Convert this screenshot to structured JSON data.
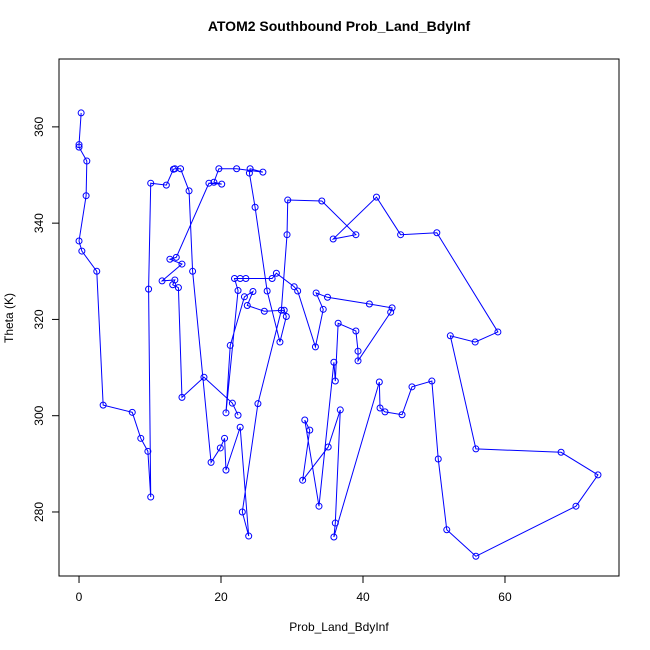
{
  "chart_data": {
    "type": "line",
    "title": "ATOM2 Southbound Prob_Land_BdyInf",
    "x_label": "Prob_Land_BdyInf",
    "y_label": "Theta (K)",
    "x": [
      0.3,
      0,
      0,
      1.1,
      1,
      0,
      0.4,
      2.5,
      3.4,
      7.5,
      8.7,
      9.7,
      10.1,
      9.8,
      10.1,
      12.3,
      13.3,
      13.5,
      14.3,
      15.5,
      16,
      18.6,
      19.9,
      20.5,
      20.7,
      22.7,
      23.9,
      23,
      25.2,
      28.5,
      29.3,
      29.4,
      34.2,
      39,
      35.8,
      41.9,
      45.3,
      50.4,
      59,
      55.8,
      52.3,
      55.9,
      67.9,
      73.1,
      70,
      55.9,
      51.8,
      50.6,
      49.7,
      46.9,
      45.5,
      43.1,
      42.4,
      42.3,
      35.9,
      36.1,
      36.8,
      35.1,
      31.5,
      32.5,
      31.8,
      33.8,
      35.9,
      36.1,
      36.5,
      39,
      39.3,
      39.3,
      43.9,
      44.1,
      40.9,
      35,
      33.4,
      34.4,
      33.3,
      30.8,
      30.3,
      27.8,
      27.2,
      23.5,
      22.7,
      21.9,
      22.4,
      20.7,
      21.3,
      23.3,
      24.5,
      23.7,
      26.1,
      28.9,
      29.2,
      28.3,
      26.5,
      24.8,
      24,
      24.1,
      25.9,
      22.2,
      19.7,
      19,
      20.1,
      18.3,
      13.7,
      12.8,
      14.5,
      11.7,
      13.5,
      13.2,
      14,
      14.5,
      17.6,
      21.6,
      22.4
    ],
    "series": [
      {
        "name": "Theta",
        "color": "#0000ff",
        "values": [
          362.9,
          356.3,
          355.8,
          352.9,
          345.7,
          336.3,
          334.2,
          330,
          302.2,
          300.7,
          295.3,
          292.6,
          283.1,
          326.3,
          348.3,
          347.9,
          351.2,
          351.3,
          351.3,
          346.7,
          330,
          290.3,
          293.3,
          295.3,
          288.7,
          297.6,
          275,
          280,
          302.5,
          321.9,
          337.6,
          344.8,
          344.6,
          337.6,
          336.7,
          345.4,
          337.6,
          338,
          317.4,
          315.3,
          316.6,
          293.1,
          292.4,
          287.7,
          281.2,
          270.8,
          276.3,
          291,
          307.2,
          306,
          300.2,
          300.8,
          301.6,
          307,
          274.8,
          277.7,
          301.2,
          293.5,
          286.6,
          297,
          299.1,
          281.2,
          311.1,
          307.2,
          319.2,
          317.6,
          313.4,
          311.4,
          321.5,
          322.4,
          323.2,
          324.6,
          325.5,
          322.1,
          314.3,
          325.9,
          326.8,
          329.6,
          328.5,
          328.5,
          328.5,
          328.5,
          326,
          300.6,
          314.6,
          324.7,
          325.8,
          322.9,
          321.7,
          321.9,
          320.6,
          315.3,
          325.9,
          343.3,
          350.4,
          351.3,
          350.6,
          351.3,
          351.3,
          348.5,
          348.1,
          348.3,
          332.9,
          332.5,
          331.5,
          328,
          328.2,
          327.2,
          326.6,
          303.8,
          308,
          302.6,
          300.1
        ]
      }
    ],
    "xlim": [
      -2.82,
      76.06
    ],
    "ylim": [
      266.7,
      374.1
    ],
    "xticks": [
      0,
      20,
      40,
      60
    ],
    "yticks": [
      280,
      300,
      320,
      340,
      360
    ]
  }
}
